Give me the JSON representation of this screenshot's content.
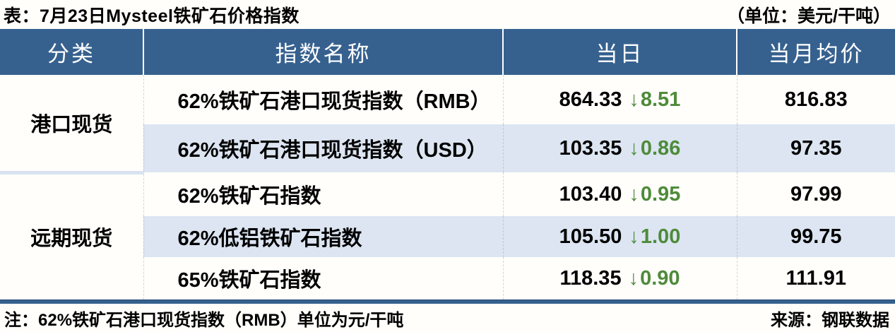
{
  "title_bar": {
    "title": "表：7月23日Mysteel铁矿石价格指数",
    "unit": "（单位：美元/干吨）"
  },
  "table": {
    "columns": [
      "分类",
      "指数名称",
      "当日",
      "当月均价"
    ],
    "groups": [
      {
        "category": "港口现货",
        "rows": [
          {
            "name": "62%铁矿石港口现货指数（RMB）",
            "today": "864.33",
            "arrow": "↓",
            "change": "8.51",
            "month_avg": "816.83"
          },
          {
            "name": "62%铁矿石港口现货指数（USD）",
            "today": "103.35",
            "arrow": "↓",
            "change": "0.86",
            "month_avg": "97.35"
          }
        ]
      },
      {
        "category": "远期现货",
        "rows": [
          {
            "name": "62%铁矿石指数",
            "today": "103.40",
            "arrow": "↓",
            "change": "0.95",
            "month_avg": "97.99"
          },
          {
            "name": "62%低铝铁矿石指数",
            "today": "105.50",
            "arrow": "↓",
            "change": "1.00",
            "month_avg": "99.75"
          },
          {
            "name": "65%铁矿石指数",
            "today": "118.35",
            "arrow": "↓",
            "change": "0.90",
            "month_avg": "111.91"
          }
        ]
      }
    ]
  },
  "footer": {
    "note": "注：62%铁矿石港口现货指数（RMB）单位为元/干吨",
    "source": "来源：钢联数据"
  },
  "colors": {
    "header_bg": "#36618F",
    "alt_row_bg": "#DCE5F1",
    "down_green": "#4E8B3B",
    "bottom_bar": "#35618E",
    "text": "#000000"
  },
  "chart_data": {
    "type": "table",
    "title": "7月23日Mysteel铁矿石价格指数",
    "unit": "美元/干吨",
    "columns": [
      "分类",
      "指数名称",
      "当日",
      "当月均价"
    ],
    "rows": [
      {
        "category": "港口现货",
        "index_name": "62%铁矿石港口现货指数（RMB）",
        "today": 864.33,
        "change": -8.51,
        "month_avg": 816.83
      },
      {
        "category": "港口现货",
        "index_name": "62%铁矿石港口现货指数（USD）",
        "today": 103.35,
        "change": -0.86,
        "month_avg": 97.35
      },
      {
        "category": "远期现货",
        "index_name": "62%铁矿石指数",
        "today": 103.4,
        "change": -0.95,
        "month_avg": 97.99
      },
      {
        "category": "远期现货",
        "index_name": "62%低铝铁矿石指数",
        "today": 105.5,
        "change": -1.0,
        "month_avg": 99.75
      },
      {
        "category": "远期现货",
        "index_name": "65%铁矿石指数",
        "today": 118.35,
        "change": -0.9,
        "month_avg": 111.91
      }
    ],
    "note": "62%铁矿石港口现货指数（RMB）单位为元/干吨",
    "source": "钢联数据"
  }
}
